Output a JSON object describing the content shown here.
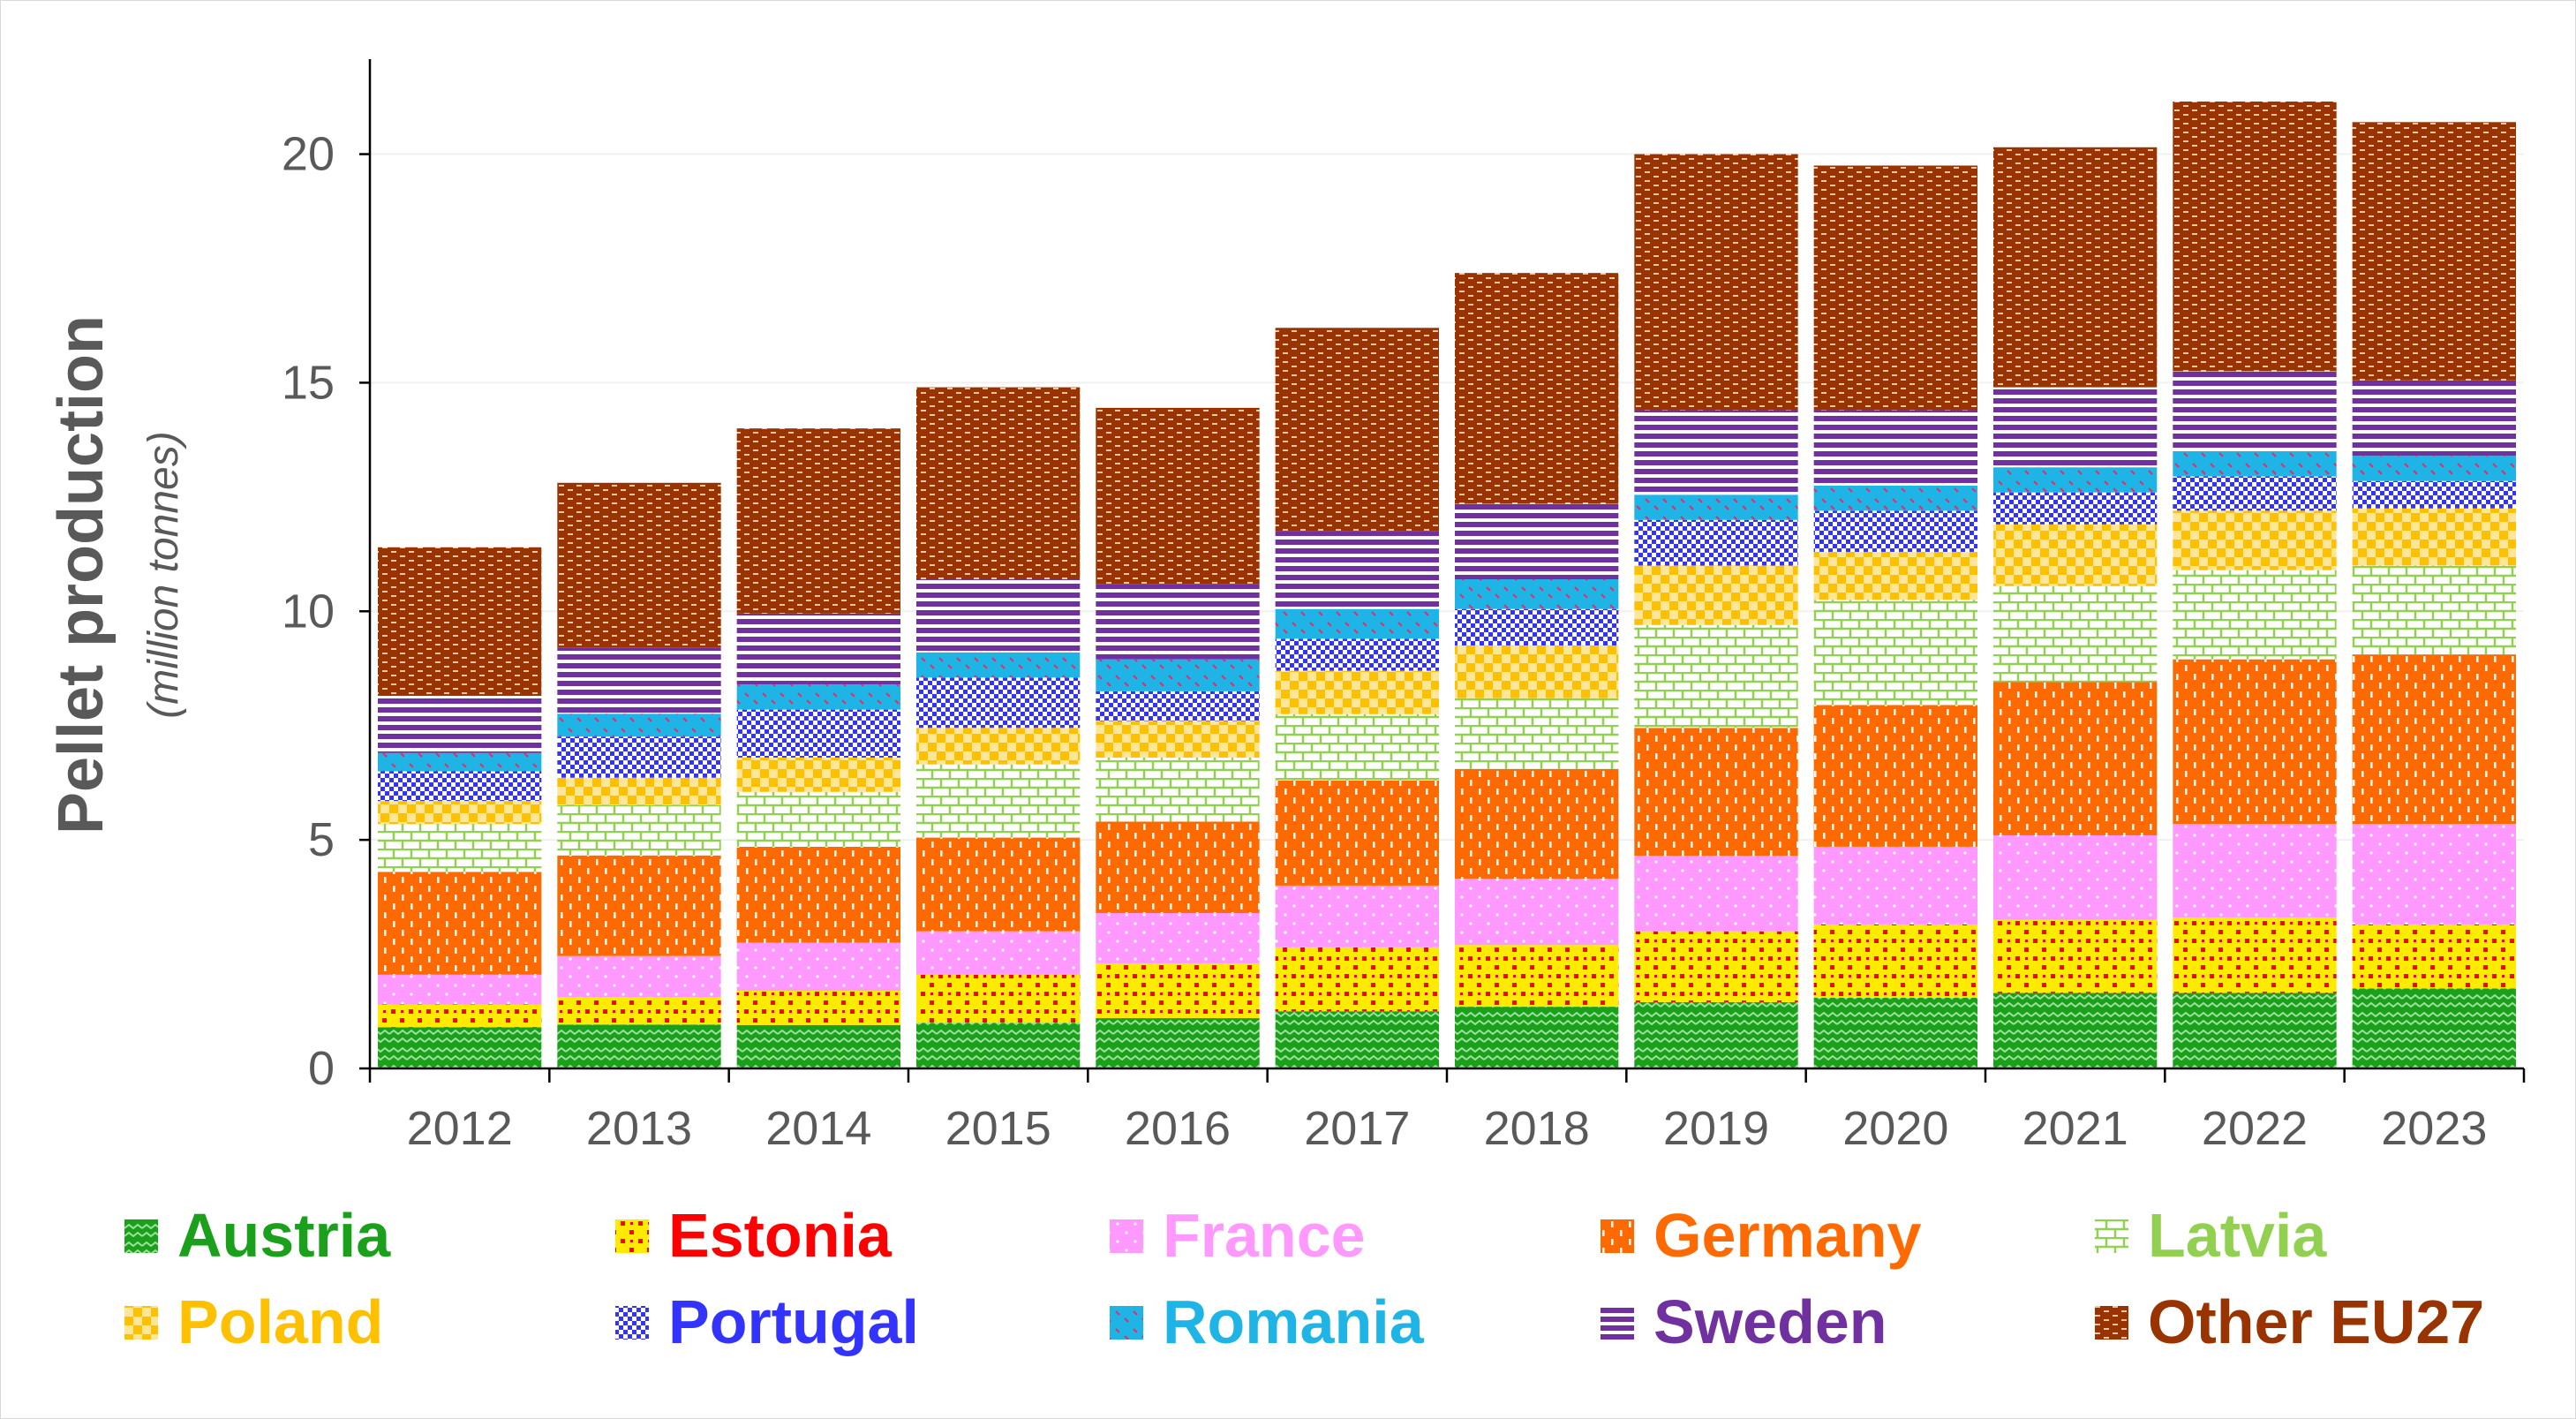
{
  "chart_data": {
    "type": "bar",
    "stacked": true,
    "title": "",
    "xlabel": "",
    "ylabel": "Pellet production",
    "ylabel_sub": "(million tonnes)",
    "ylim": [
      0,
      22
    ],
    "yticks": [
      0,
      5,
      10,
      15,
      20
    ],
    "grid": "horizontal",
    "legend_position": "bottom",
    "categories": [
      "2012",
      "2013",
      "2014",
      "2015",
      "2016",
      "2017",
      "2018",
      "2019",
      "2020",
      "2021",
      "2022",
      "2023"
    ],
    "series": [
      {
        "name": "Austria",
        "color": "#1aa01a",
        "pattern": "zigzag",
        "values": [
          0.9,
          0.96,
          0.95,
          1.0,
          1.1,
          1.25,
          1.35,
          1.45,
          1.55,
          1.65,
          1.65,
          1.75
        ]
      },
      {
        "name": "Estonia",
        "color": "#ff0000",
        "pattern": "dots-on-yellow",
        "values": [
          0.5,
          0.6,
          0.75,
          1.05,
          1.2,
          1.4,
          1.35,
          1.55,
          1.6,
          1.6,
          1.65,
          1.4
        ]
      },
      {
        "name": "France",
        "color": "#ff99ff",
        "pattern": "dotted",
        "values": [
          0.65,
          0.9,
          1.05,
          0.95,
          1.1,
          1.35,
          1.45,
          1.65,
          1.7,
          1.85,
          2.05,
          2.2
        ]
      },
      {
        "name": "Germany",
        "color": "#ff6a00",
        "pattern": "vertical-dashes",
        "values": [
          2.25,
          2.2,
          2.1,
          2.05,
          2.0,
          2.3,
          2.4,
          2.8,
          3.1,
          3.35,
          3.6,
          3.7
        ]
      },
      {
        "name": "Latvia",
        "color": "#92d050",
        "pattern": "brick",
        "values": [
          1.05,
          1.1,
          1.2,
          1.6,
          1.4,
          1.45,
          1.55,
          2.25,
          2.3,
          2.1,
          1.95,
          1.95
        ]
      },
      {
        "name": "Poland",
        "color": "#ffc000",
        "pattern": "check",
        "values": [
          0.5,
          0.6,
          0.75,
          0.8,
          0.8,
          0.95,
          1.15,
          1.3,
          1.05,
          1.35,
          1.3,
          1.25
        ]
      },
      {
        "name": "Portugal",
        "color": "#3333ff",
        "pattern": "checkerboard",
        "values": [
          0.65,
          0.9,
          1.05,
          1.1,
          0.65,
          0.7,
          0.8,
          1.0,
          0.9,
          0.7,
          0.75,
          0.6
        ]
      },
      {
        "name": "Romania",
        "color": "#1fb4e6",
        "pattern": "ticks",
        "values": [
          0.4,
          0.5,
          0.55,
          0.55,
          0.7,
          0.65,
          0.65,
          0.55,
          0.55,
          0.55,
          0.55,
          0.55
        ]
      },
      {
        "name": "Sweden",
        "color": "#7030a0",
        "pattern": "horizontal-stripes",
        "values": [
          1.25,
          1.45,
          1.55,
          1.6,
          1.65,
          1.7,
          1.65,
          1.85,
          1.65,
          1.75,
          1.75,
          1.65
        ]
      },
      {
        "name": "Other EU27",
        "color": "#993300",
        "pattern": "weave",
        "values": [
          3.25,
          3.6,
          4.05,
          4.2,
          3.85,
          4.45,
          5.05,
          5.6,
          5.35,
          5.25,
          5.9,
          5.65
        ]
      }
    ]
  }
}
